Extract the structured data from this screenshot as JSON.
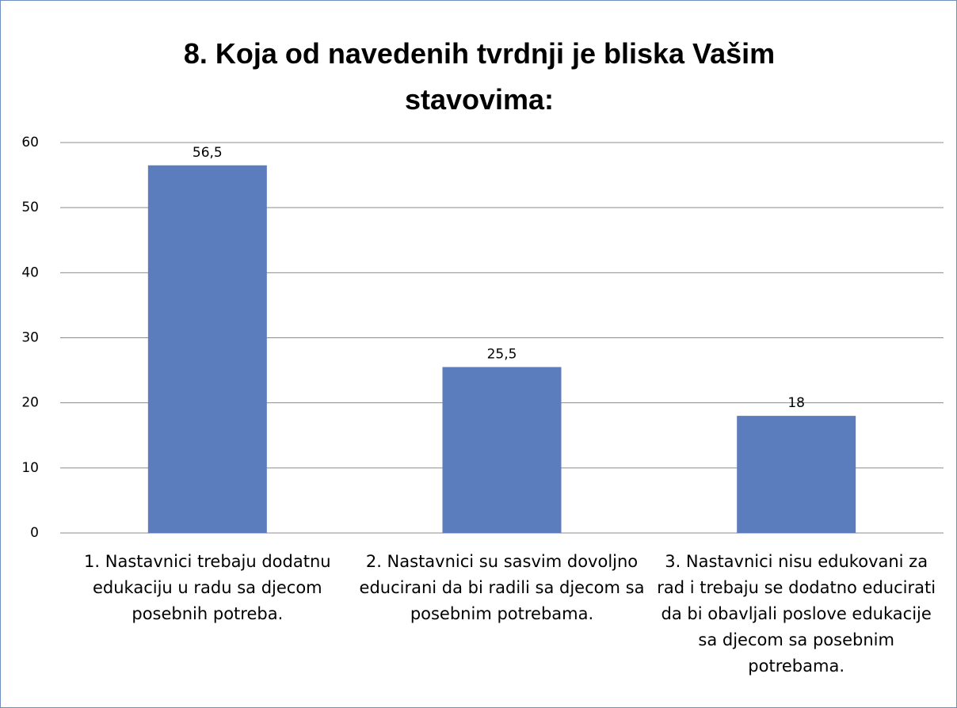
{
  "chart_data": {
    "type": "bar",
    "title": "8. Koja od navedenih tvrdnji je bliska Vašim stavovima:",
    "categories": [
      "1. Nastavnici trebaju dodatnu edukaciju u radu sa djecom posebnih potreba.",
      "2. Nastavnici su sasvim dovoljno educirani da bi radili sa djecom sa posebnim potrebama.",
      "3. Nastavnici nisu edukovani za rad i trebaju se  dodatno educirati da bi obavljali poslove edukacije sa djecom sa posebnim potrebama."
    ],
    "values": [
      56.5,
      25.5,
      18
    ],
    "value_labels": [
      "56,5",
      "25,5",
      "18"
    ],
    "color": "#5b7dbd",
    "ylim": [
      0,
      60
    ],
    "yticks": [
      0,
      10,
      20,
      30,
      40,
      50,
      60
    ],
    "grid": true
  }
}
